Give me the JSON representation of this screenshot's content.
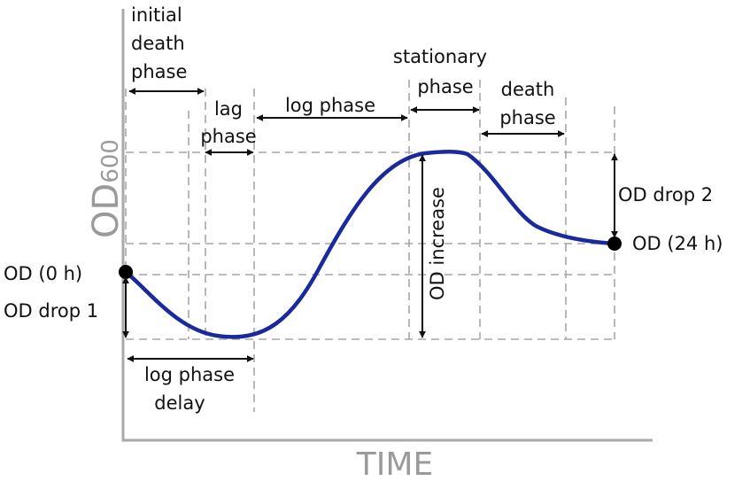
{
  "axes": {
    "y_label_main": "OD",
    "y_label_sub": "600",
    "x_label": "TIME"
  },
  "phases": {
    "initial_death": [
      "initial",
      "death",
      "phase"
    ],
    "lag": [
      "lag",
      "phase"
    ],
    "log": [
      "log phase"
    ],
    "stationary": [
      "stationary",
      "phase"
    ],
    "death": [
      "death",
      "phase"
    ]
  },
  "annotations": {
    "od_start": "OD (0 h)",
    "od_end": "OD (24 h)",
    "od_drop_1": "OD drop 1",
    "od_drop_2": "OD drop 2",
    "od_increase": "OD increase",
    "log_phase_delay": [
      "log phase",
      "delay"
    ]
  },
  "colors": {
    "curve": "#1a2a9c",
    "axis": "#a9a9a9",
    "guides": "#a6a6a6",
    "text": "#111111",
    "axis_text": "#9a9a9a"
  }
}
